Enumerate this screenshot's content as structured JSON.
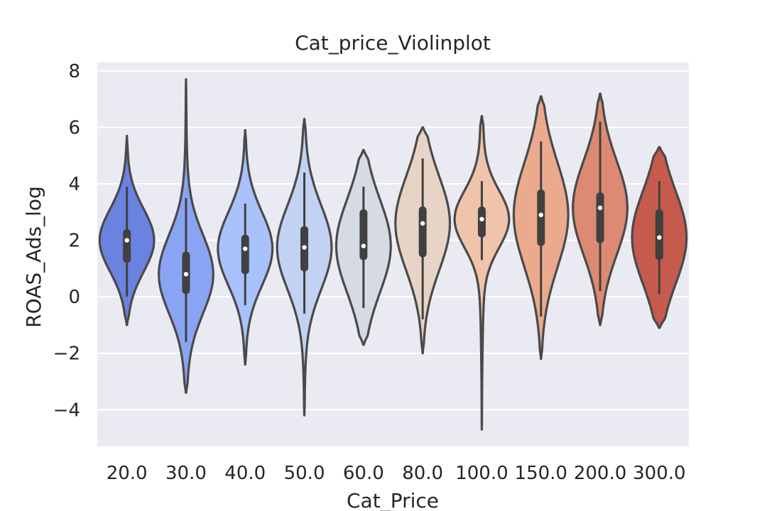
{
  "chart_data": {
    "type": "violin",
    "title": "Cat_price_Violinplot",
    "xlabel": "Cat_Price",
    "ylabel": "ROAS_Ads_log",
    "ylim": [
      -5.3,
      8.3
    ],
    "yticks": [
      8,
      6,
      4,
      2,
      0,
      -2,
      -4
    ],
    "ytick_labels": [
      "8",
      "6",
      "4",
      "2",
      "0",
      "−2",
      "−4"
    ],
    "grid": true,
    "categories": [
      "20.0",
      "30.0",
      "40.0",
      "50.0",
      "60.0",
      "80.0",
      "100.0",
      "150.0",
      "200.0",
      "300.0"
    ],
    "colors": [
      "#6a82e0",
      "#8aa4f4",
      "#a9c2fc",
      "#c2d2f3",
      "#d6dbe3",
      "#e8d4c6",
      "#f0c3ab",
      "#ebaa8e",
      "#dc8a73",
      "#c65a4d"
    ],
    "violins": [
      {
        "category": "20.0",
        "min": -1.0,
        "max": 5.7,
        "q1": 1.2,
        "median": 2.0,
        "q3": 2.4,
        "whisker_low": 0.0,
        "whisker_high": 3.9
      },
      {
        "category": "30.0",
        "min": -3.4,
        "max": 7.7,
        "q1": 0.1,
        "median": 0.8,
        "q3": 1.6,
        "whisker_low": -1.6,
        "whisker_high": 3.5
      },
      {
        "category": "40.0",
        "min": -2.4,
        "max": 5.9,
        "q1": 0.8,
        "median": 1.7,
        "q3": 2.2,
        "whisker_low": -0.3,
        "whisker_high": 3.3
      },
      {
        "category": "50.0",
        "min": -4.2,
        "max": 6.3,
        "q1": 0.9,
        "median": 1.75,
        "q3": 2.5,
        "whisker_low": -0.6,
        "whisker_high": 4.4
      },
      {
        "category": "60.0",
        "min": -1.7,
        "max": 5.2,
        "q1": 1.3,
        "median": 1.8,
        "q3": 3.1,
        "whisker_low": -0.4,
        "whisker_high": 3.9
      },
      {
        "category": "80.0",
        "min": -2.0,
        "max": 6.0,
        "q1": 1.4,
        "median": 2.6,
        "q3": 3.2,
        "whisker_low": -0.8,
        "whisker_high": 4.9
      },
      {
        "category": "100.0",
        "min": -4.7,
        "max": 6.4,
        "q1": 2.1,
        "median": 2.75,
        "q3": 3.2,
        "whisker_low": 1.3,
        "whisker_high": 4.1
      },
      {
        "category": "150.0",
        "min": -2.2,
        "max": 7.1,
        "q1": 1.8,
        "median": 2.9,
        "q3": 3.8,
        "whisker_low": -0.7,
        "whisker_high": 5.5
      },
      {
        "category": "200.0",
        "min": -1.0,
        "max": 7.2,
        "q1": 1.9,
        "median": 3.15,
        "q3": 3.7,
        "whisker_low": 0.2,
        "whisker_high": 6.2
      },
      {
        "category": "300.0",
        "min": -1.1,
        "max": 5.3,
        "q1": 1.3,
        "median": 2.1,
        "q3": 3.1,
        "whisker_low": 0.1,
        "whisker_high": 4.1
      }
    ]
  }
}
